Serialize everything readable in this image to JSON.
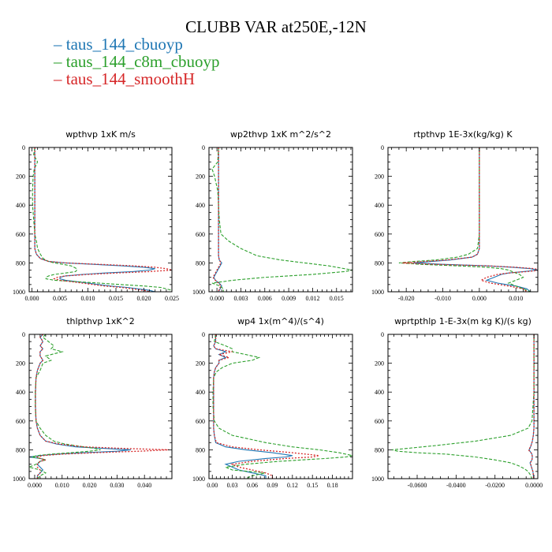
{
  "title": "CLUBB VAR at250E,-12N",
  "legend": [
    {
      "label": "taus_144_cbuoyp",
      "color": "#1f77b4"
    },
    {
      "label": "taus_144_c8m_cbuoyp",
      "color": "#2ca02c"
    },
    {
      "label": "taus_144_smoothH",
      "color": "#d62728"
    }
  ],
  "chart_data": [
    {
      "type": "line",
      "title": "wpthvp  1xK m/s",
      "xlim": [
        -0.0005,
        0.025
      ],
      "ylim": [
        1000,
        0
      ],
      "xticks": [
        "0.000",
        "0.005",
        "0.010",
        "0.015",
        "0.020",
        "0.025"
      ],
      "xtick_values": [
        0,
        0.005,
        0.01,
        0.015,
        0.02,
        0.025
      ],
      "yticks": [
        "0",
        "200",
        "400",
        "600",
        "800",
        "1000"
      ],
      "y": [
        0,
        50,
        100,
        150,
        200,
        300,
        400,
        500,
        600,
        650,
        700,
        740,
        770,
        790,
        800,
        810,
        820,
        830,
        840,
        850,
        860,
        870,
        880,
        890,
        900,
        910,
        920,
        930,
        940,
        950,
        960,
        970,
        980,
        990,
        1000
      ],
      "series": [
        {
          "values": [
            0.0005,
            0.0005,
            0.0005,
            0.0005,
            0.0005,
            0.0005,
            0.0005,
            0.0005,
            0.0005,
            0.0005,
            0.0005,
            0.0008,
            0.0015,
            0.003,
            0.006,
            0.011,
            0.016,
            0.02,
            0.022,
            0.021,
            0.018,
            0.013,
            0.009,
            0.006,
            0.005,
            0.005,
            0.006,
            0.008,
            0.01,
            0.012,
            0.014,
            0.017,
            0.019,
            0.021,
            0.022
          ]
        },
        {
          "values": [
            0.0005,
            0.0003,
            0.001,
            0.0004,
            0.0002,
            0.0001,
            0.0001,
            0.0003,
            0.0005,
            0.0008,
            0.001,
            0.0015,
            0.002,
            0.003,
            0.004,
            0.0055,
            0.007,
            0.0075,
            0.008,
            0.008,
            0.0078,
            0.006,
            0.004,
            0.003,
            0.0025,
            0.0025,
            0.004,
            0.008,
            0.012,
            0.016,
            0.02,
            0.023,
            0.024,
            0.025,
            0.025
          ]
        },
        {
          "values": [
            0.0005,
            0.0005,
            0.0005,
            0.0005,
            0.0005,
            0.0005,
            0.0005,
            0.0005,
            0.0005,
            0.0005,
            0.0005,
            0.0008,
            0.0015,
            0.003,
            0.006,
            0.012,
            0.018,
            0.022,
            0.024,
            0.025,
            0.021,
            0.015,
            0.01,
            0.006,
            0.0045,
            0.004,
            0.005,
            0.007,
            0.009,
            0.011,
            0.013,
            0.016,
            0.018,
            0.02,
            0.021
          ]
        }
      ]
    },
    {
      "type": "line",
      "title": "wp2thvp  1xK m^2/s^2",
      "xlim": [
        -0.001,
        0.017
      ],
      "ylim": [
        1000,
        0
      ],
      "xticks": [
        "0.000",
        "0.003",
        "0.006",
        "0.009",
        "0.012",
        "0.015"
      ],
      "xtick_values": [
        0,
        0.003,
        0.006,
        0.009,
        0.012,
        0.015
      ],
      "yticks": [
        "0",
        "200",
        "400",
        "600",
        "800",
        "1000"
      ],
      "y": [
        0,
        100,
        150,
        200,
        300,
        400,
        500,
        600,
        650,
        700,
        750,
        780,
        800,
        820,
        840,
        850,
        860,
        880,
        900,
        920,
        940,
        960,
        980,
        1000
      ],
      "series": [
        {
          "values": [
            0.0002,
            0.0002,
            0.0002,
            0.0002,
            0.0002,
            0.0002,
            0.0002,
            0.0002,
            0.0002,
            0.0002,
            0.0002,
            0.0003,
            0.0006,
            0.0004,
            0.0002,
            0.0001,
            0,
            -0.0002,
            -0.0004,
            -0.0002,
            0.0003,
            0.0006,
            0.0004,
            0.0002
          ]
        },
        {
          "values": [
            0.0002,
            0.0001,
            -0.0006,
            -0.0003,
            0.0001,
            0.0002,
            0.0003,
            0.0005,
            0.0015,
            0.003,
            0.005,
            0.008,
            0.011,
            0.014,
            0.016,
            0.017,
            0.016,
            0.012,
            0.006,
            0.002,
            -0.0006,
            0.0004,
            0.0008,
            0.0008
          ]
        },
        {
          "values": [
            0.0002,
            0.0002,
            0.0002,
            0.0002,
            0.0002,
            0.0002,
            0.0002,
            0.0002,
            0.0002,
            0.0002,
            0.0002,
            0.0003,
            0.0005,
            0.0003,
            0.0001,
            0,
            -0.0001,
            -0.0003,
            -0.0005,
            -0.0002,
            0.0002,
            0.0005,
            0.0003,
            0.0002
          ]
        }
      ]
    },
    {
      "type": "line",
      "title": "rtpthvp  1E-3x(kg/kg) K",
      "xlim": [
        -0.025,
        0.016
      ],
      "ylim": [
        1000,
        0
      ],
      "xticks": [
        "-0.020",
        "-0.010",
        "0.000",
        "0.010"
      ],
      "xtick_values": [
        -0.02,
        -0.01,
        0,
        0.01
      ],
      "yticks": [
        "0",
        "200",
        "400",
        "600",
        "800",
        "1000"
      ],
      "y": [
        0,
        200,
        400,
        600,
        700,
        740,
        760,
        780,
        790,
        800,
        810,
        820,
        830,
        840,
        850,
        860,
        870,
        880,
        900,
        920,
        940,
        960,
        980,
        1000
      ],
      "series": [
        {
          "values": [
            0,
            0,
            0,
            0,
            0,
            -0.0005,
            -0.002,
            -0.008,
            -0.013,
            -0.018,
            -0.01,
            0.002,
            0.009,
            0.014,
            0.016,
            0.012,
            0.008,
            0.006,
            0.004,
            0.002,
            0.005,
            0.01,
            0.013,
            0.014
          ]
        },
        {
          "values": [
            0,
            0,
            0,
            0,
            -0.0005,
            -0.003,
            -0.006,
            -0.012,
            -0.018,
            -0.022,
            -0.016,
            -0.006,
            0.002,
            0.006,
            0.008,
            0.009,
            0.01,
            0.011,
            0.012,
            0.01,
            0.008,
            0.01,
            0.012,
            0.014
          ]
        },
        {
          "values": [
            0,
            0,
            0,
            0,
            0,
            -0.0005,
            -0.002,
            -0.009,
            -0.015,
            -0.021,
            -0.012,
            0.002,
            0.01,
            0.015,
            0.017,
            0.013,
            0.008,
            0.005,
            0.002,
            0.0005,
            0.003,
            0.008,
            0.012,
            0.013
          ]
        }
      ]
    },
    {
      "type": "line",
      "title": "thlpthvp  1xK^2",
      "xlim": [
        -0.002,
        0.05
      ],
      "ylim": [
        1000,
        0
      ],
      "xticks": [
        "0.000",
        "0.010",
        "0.020",
        "0.030",
        "0.040"
      ],
      "xtick_values": [
        0,
        0.01,
        0.02,
        0.03,
        0.04
      ],
      "yticks": [
        "0",
        "200",
        "400",
        "600",
        "800",
        "1000"
      ],
      "y": [
        0,
        20,
        50,
        80,
        100,
        120,
        150,
        180,
        200,
        250,
        300,
        400,
        500,
        600,
        650,
        700,
        740,
        760,
        780,
        790,
        800,
        810,
        820,
        830,
        840,
        850,
        860,
        870,
        880,
        900,
        920,
        940,
        960,
        980,
        1000
      ],
      "series": [
        {
          "values": [
            0.003,
            0.002,
            0.003,
            0.002,
            0.003,
            0.002,
            0.002,
            0.003,
            0.002,
            0.001,
            0.0005,
            0.0003,
            0.0003,
            0.0005,
            0.001,
            0.002,
            0.004,
            0.008,
            0.015,
            0.025,
            0.035,
            0.03,
            0.018,
            0.008,
            0.002,
            -0.002,
            0.002,
            0.004,
            0.002,
            0.001,
            0.002,
            0.003,
            0.002,
            0.001,
            0.001
          ]
        },
        {
          "values": [
            0.004,
            0.003,
            0.005,
            0.007,
            0.006,
            0.01,
            0.004,
            0.006,
            0.003,
            0.002,
            0.0005,
            0.0002,
            0.0002,
            0.0005,
            0.002,
            0.004,
            0.007,
            0.011,
            0.018,
            0.022,
            0.024,
            0.02,
            0.013,
            0.006,
            0.001,
            -0.001,
            0.002,
            0.004,
            0.002,
            0.0005,
            -0.002,
            0.002,
            0.004,
            0.002,
            0.001
          ]
        },
        {
          "values": [
            0.003,
            0.002,
            0.003,
            0.002,
            0.003,
            0.002,
            0.002,
            0.003,
            0.002,
            0.001,
            0.0005,
            0.0003,
            0.0003,
            0.0005,
            0.001,
            0.002,
            0.004,
            0.009,
            0.018,
            0.032,
            0.049,
            0.038,
            0.022,
            0.01,
            0.003,
            0.001,
            0.002,
            0.004,
            0.002,
            0.001,
            0.001,
            0.002,
            0.002,
            0.001,
            0.001
          ]
        }
      ]
    },
    {
      "type": "line",
      "title": "wp4  1x(m^4)/(s^4)",
      "xlim": [
        -0.005,
        0.21
      ],
      "ylim": [
        1000,
        0
      ],
      "xticks": [
        "0.00",
        "0.03",
        "0.06",
        "0.09",
        "0.12",
        "0.15",
        "0.18"
      ],
      "xtick_values": [
        0,
        0.03,
        0.06,
        0.09,
        0.12,
        0.15,
        0.18
      ],
      "yticks": [
        "0",
        "200",
        "400",
        "600",
        "800",
        "1000"
      ],
      "y": [
        0,
        50,
        80,
        100,
        120,
        140,
        160,
        180,
        200,
        230,
        260,
        300,
        400,
        500,
        600,
        650,
        700,
        750,
        780,
        800,
        820,
        840,
        850,
        860,
        880,
        900,
        920,
        940,
        960,
        980,
        1000
      ],
      "series": [
        {
          "values": [
            0.005,
            0.005,
            0.002,
            0.005,
            0.02,
            0.01,
            0.02,
            0.01,
            0.01,
            0.005,
            0.003,
            0.002,
            0.002,
            0.002,
            0.002,
            0.002,
            0.003,
            0.005,
            0.02,
            0.05,
            0.09,
            0.12,
            0.11,
            0.08,
            0.04,
            0.02,
            0.03,
            0.04,
            0.06,
            0.08,
            0.08
          ]
        },
        {
          "values": [
            0.005,
            0.003,
            0.02,
            0.03,
            0.03,
            0.05,
            0.07,
            0.06,
            0.03,
            0.015,
            0.006,
            0.002,
            0.001,
            0.001,
            0.003,
            0.01,
            0.03,
            0.08,
            0.12,
            0.16,
            0.19,
            0.21,
            0.2,
            0.17,
            0.1,
            0.05,
            0.02,
            0.03,
            0.08,
            0.06,
            0.05
          ]
        },
        {
          "values": [
            0.005,
            0.005,
            0.002,
            0.005,
            0.03,
            0.01,
            0.025,
            0.01,
            0.01,
            0.005,
            0.003,
            0.002,
            0.002,
            0.002,
            0.002,
            0.002,
            0.003,
            0.006,
            0.03,
            0.07,
            0.12,
            0.16,
            0.15,
            0.11,
            0.06,
            0.03,
            0.04,
            0.06,
            0.08,
            0.09,
            0.09
          ]
        }
      ]
    },
    {
      "type": "line",
      "title": "wprtpthlp  1-E-3x(m kg K)/(s kg)",
      "xlim": [
        -0.075,
        0.002
      ],
      "ylim": [
        1000,
        0
      ],
      "xticks": [
        "-0.0600",
        "-0.0400",
        "-0.0200",
        "0.0000"
      ],
      "xtick_values": [
        -0.06,
        -0.04,
        -0.02,
        0
      ],
      "yticks": [
        "0",
        "200",
        "400",
        "600",
        "800",
        "1000"
      ],
      "y": [
        0,
        200,
        400,
        600,
        650,
        700,
        740,
        770,
        790,
        800,
        810,
        820,
        830,
        850,
        870,
        890,
        910,
        930,
        950,
        970,
        1000
      ],
      "series": [
        {
          "values": [
            0,
            0,
            0,
            0,
            0,
            -0.0003,
            -0.0008,
            -0.0015,
            -0.002,
            -0.0025,
            -0.002,
            -0.0015,
            -0.001,
            -0.0008,
            -0.001,
            -0.002,
            -0.0015,
            -0.001,
            -0.0005,
            -0.0003,
            -0.0002
          ]
        },
        {
          "values": [
            0,
            0,
            0,
            -0.001,
            -0.003,
            -0.012,
            -0.03,
            -0.05,
            -0.065,
            -0.073,
            -0.07,
            -0.06,
            -0.045,
            -0.03,
            -0.02,
            -0.012,
            -0.008,
            -0.005,
            -0.003,
            -0.002,
            -0.001
          ]
        },
        {
          "values": [
            0,
            0,
            0,
            0,
            0,
            -0.0003,
            -0.0008,
            -0.0015,
            -0.0022,
            -0.0028,
            -0.0022,
            -0.0015,
            -0.001,
            -0.0008,
            -0.001,
            -0.0018,
            -0.0015,
            -0.001,
            -0.0005,
            -0.0003,
            -0.0002
          ]
        }
      ]
    }
  ]
}
